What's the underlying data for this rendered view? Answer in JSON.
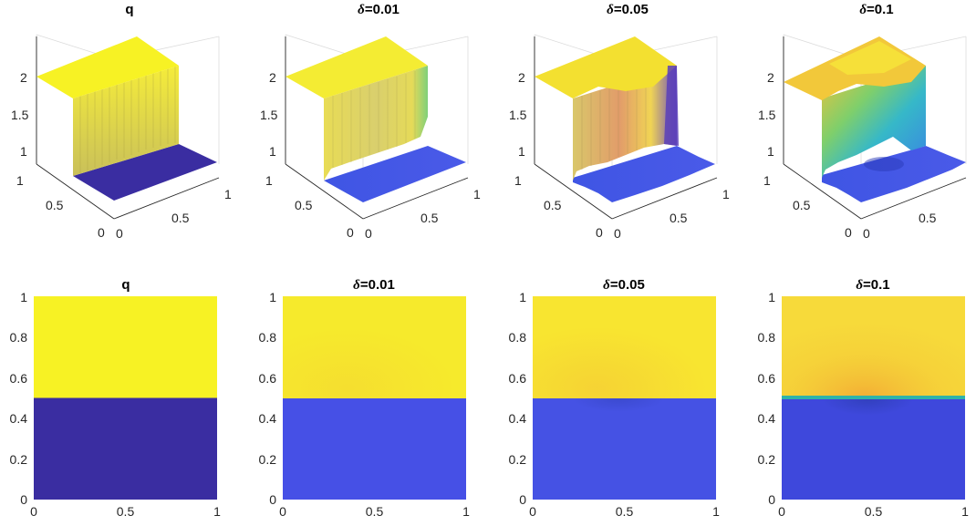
{
  "chart_data": [
    {
      "type": "surface",
      "title": "q",
      "zticks": [
        "1",
        "1.5",
        "2"
      ],
      "yticks": [
        "0",
        "0.5",
        "1"
      ],
      "xticks": [
        "0",
        "0.5",
        "1"
      ],
      "zlim": [
        1,
        2
      ],
      "low_value": 1,
      "high_value": 2,
      "noise": 0,
      "colormap": "parula"
    },
    {
      "type": "surface",
      "title": "δ=0.01",
      "zticks": [
        "1",
        "1.5",
        "2"
      ],
      "yticks": [
        "0",
        "0.5",
        "1"
      ],
      "xticks": [
        "0",
        "0.5",
        "1"
      ],
      "zlim": [
        1,
        2
      ],
      "low_value": 1.02,
      "high_value": 1.95,
      "noise": 0.01,
      "colormap": "parula"
    },
    {
      "type": "surface",
      "title": "δ=0.05",
      "zticks": [
        "1",
        "1.5",
        "2"
      ],
      "yticks": [
        "0",
        "0.5",
        "1"
      ],
      "xticks": [
        "0",
        "0.5",
        "1"
      ],
      "zlim": [
        1,
        2
      ],
      "low_value": 1.03,
      "high_value": 1.95,
      "noise": 0.05,
      "colormap": "parula"
    },
    {
      "type": "surface",
      "title": "δ=0.1",
      "zticks": [
        "1",
        "1.5",
        "2"
      ],
      "yticks": [
        "0",
        "0.5",
        "1"
      ],
      "xticks": [
        "0",
        "0.5"
      ],
      "zlim": [
        1,
        2
      ],
      "low_value": 1.05,
      "high_value": 1.9,
      "noise": 0.1,
      "colormap": "parula"
    },
    {
      "type": "heatmap",
      "title": "q",
      "yticks": [
        "0",
        "0.2",
        "0.4",
        "0.6",
        "0.8",
        "1"
      ],
      "xticks": [
        "0",
        "0.5",
        "1"
      ],
      "xlim": [
        0,
        1
      ],
      "ylim": [
        0,
        1
      ],
      "interface_y": 0.5,
      "low_color": "#3a2da1",
      "high_color": "#f7f224"
    },
    {
      "type": "heatmap",
      "title": "δ=0.01",
      "yticks": [
        "0",
        "0.2",
        "0.4",
        "0.6",
        "0.8",
        "1"
      ],
      "xticks": [
        "0",
        "0.5",
        "1"
      ],
      "xlim": [
        0,
        1
      ],
      "ylim": [
        0,
        1
      ],
      "interface_y": 0.5,
      "low_color": "#4650e6",
      "high_color": "#f6ea2c"
    },
    {
      "type": "heatmap",
      "title": "δ=0.05",
      "yticks": [
        "0",
        "0.2",
        "0.4",
        "0.6",
        "0.8",
        "1"
      ],
      "xticks": [
        "0",
        "0.5",
        "1"
      ],
      "xlim": [
        0,
        1
      ],
      "ylim": [
        0,
        1
      ],
      "interface_y": 0.5,
      "low_color": "#4552e4",
      "high_color": "#f8e530"
    },
    {
      "type": "heatmap",
      "title": "δ=0.1",
      "yticks": [
        "0",
        "0.2",
        "0.4",
        "0.6",
        "0.8",
        "1"
      ],
      "xticks": [
        "0",
        "0.5",
        "1"
      ],
      "xlim": [
        0,
        1
      ],
      "ylim": [
        0,
        1
      ],
      "interface_y": 0.5,
      "low_color": "#3e48dc",
      "high_color": "#f7da3a"
    }
  ]
}
